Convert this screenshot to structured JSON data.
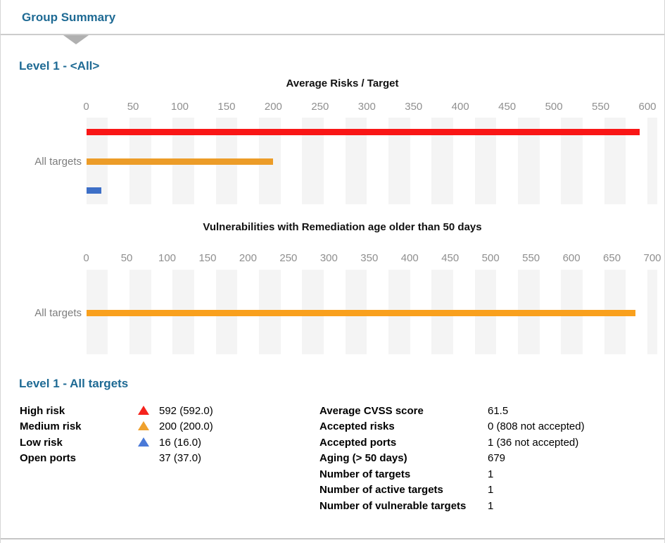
{
  "header": {
    "tab_label": "Group Summary"
  },
  "sections": [
    {
      "title": "Level 1 - <All>"
    },
    {
      "title": "Level 1 - All targets"
    }
  ],
  "chart_data": [
    {
      "type": "bar",
      "orientation": "horizontal",
      "title": "Average Risks / Target",
      "categories": [
        "All targets"
      ],
      "series": [
        {
          "name": "High risk",
          "color": "#f91616",
          "values": [
            592
          ]
        },
        {
          "name": "Medium risk",
          "color": "#ec9c28",
          "values": [
            200
          ]
        },
        {
          "name": "Low risk",
          "color": "#3d6fc7",
          "values": [
            16
          ]
        }
      ],
      "xlim": [
        0,
        600
      ],
      "tick_step": 50,
      "tick_labels": [
        "0",
        "50",
        "100",
        "150",
        "200",
        "250",
        "300",
        "350",
        "400",
        "450",
        "500",
        "550",
        "600"
      ],
      "grid": "striped-columns",
      "legend_position": "none"
    },
    {
      "type": "bar",
      "orientation": "horizontal",
      "title": "Vulnerabilities with Remediation age older than 50 days",
      "categories": [
        "All targets"
      ],
      "series": [
        {
          "name": "Aging (> 50 days)",
          "color": "#f9a01d",
          "values": [
            679
          ]
        }
      ],
      "xlim": [
        0,
        700
      ],
      "tick_step": 50,
      "tick_labels": [
        "0",
        "50",
        "100",
        "150",
        "200",
        "250",
        "300",
        "350",
        "400",
        "450",
        "500",
        "550",
        "600",
        "650",
        "700"
      ],
      "grid": "striped-columns",
      "legend_position": "none"
    }
  ],
  "summary": {
    "left_rows": [
      {
        "label": "High risk",
        "icon": "triangle-up-icon",
        "icon_color": "#f5231d",
        "value": "592 (592.0)"
      },
      {
        "label": "Medium risk",
        "icon": "triangle-up-icon",
        "icon_color": "#efa12e",
        "value": "200 (200.0)"
      },
      {
        "label": "Low risk",
        "icon": "triangle-up-icon",
        "icon_color": "#4a7ad8",
        "value": "16 (16.0)"
      },
      {
        "label": "Open ports",
        "icon": "none",
        "icon_color": "",
        "value": "37 (37.0)"
      }
    ],
    "right_rows": [
      {
        "label": "Average CVSS score",
        "value": "61.5"
      },
      {
        "label": "Accepted risks",
        "value": "0 (808 not accepted)"
      },
      {
        "label": "Accepted ports",
        "value": "1 (36 not accepted)"
      },
      {
        "label": "Aging (> 50 days)",
        "value": "679"
      },
      {
        "label": "Number of targets",
        "value": "1"
      },
      {
        "label": "Number of active targets",
        "value": "1"
      },
      {
        "label": "Number of vulnerable targets",
        "value": "1"
      }
    ]
  },
  "colors": {
    "accent_blue": "#1e6a94",
    "stripe_gray": "#f4f4f4",
    "tick_gray": "#8f8f8f",
    "category_gray": "#7d7d7d",
    "divider_gray": "#cccccc",
    "marker_gray": "#b0b0b0"
  }
}
